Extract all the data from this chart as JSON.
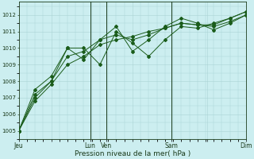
{
  "background_color": "#cceef0",
  "grid_color": "#aad4d4",
  "line_color": "#1a5c1a",
  "xlabel": "Pression niveau de la mer( hPa )",
  "xlabel_fontsize": 6.5,
  "ylim": [
    1004.5,
    1012.8
  ],
  "yticks": [
    1005,
    1006,
    1007,
    1008,
    1009,
    1010,
    1011,
    1012
  ],
  "xtick_labels": [
    "Jeu",
    "",
    "Lun",
    "Ven",
    "",
    "Sam",
    "",
    "Dim"
  ],
  "xtick_positions": [
    0,
    10,
    22,
    27,
    35,
    47,
    58,
    70
  ],
  "x_total": 70,
  "vline_positions": [
    22,
    27,
    47,
    70
  ],
  "series1": [
    1005.0,
    1007.0,
    1008.0,
    1010.0,
    1010.0,
    1009.0,
    1011.0,
    1010.3,
    1009.5,
    1010.5,
    1011.3,
    1011.2,
    1011.5,
    1011.8,
    1012.2
  ],
  "series2": [
    1005.0,
    1007.5,
    1008.3,
    1010.0,
    1009.3,
    1010.5,
    1011.3,
    1009.8,
    1010.5,
    1011.3,
    1011.8,
    1011.5,
    1011.1,
    1011.5,
    1012.0
  ],
  "series3": [
    1005.0,
    1007.2,
    1008.0,
    1009.5,
    1009.8,
    1010.5,
    1010.8,
    1010.5,
    1010.8,
    1011.2,
    1011.5,
    1011.4,
    1011.4,
    1011.8,
    1012.2
  ],
  "series4": [
    1005.0,
    1006.8,
    1007.8,
    1009.0,
    1009.5,
    1010.2,
    1010.5,
    1010.7,
    1011.0,
    1011.2,
    1011.5,
    1011.4,
    1011.3,
    1011.6,
    1012.0
  ],
  "marker_size": 2.0,
  "line_width": 0.7
}
